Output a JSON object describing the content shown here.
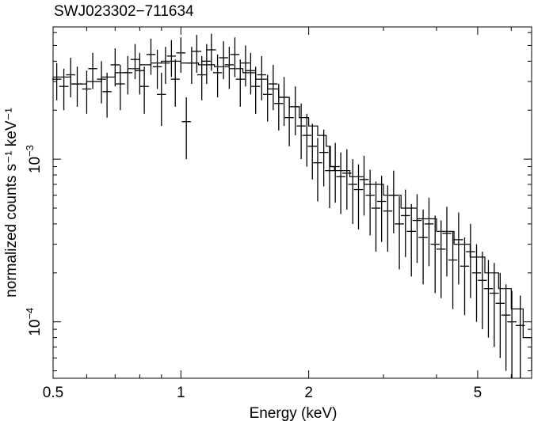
{
  "chart_data": {
    "type": "scatter",
    "title": "SWJ023302−711634",
    "xlabel": "Energy (keV)",
    "ylabel": "normalized counts s⁻¹ keV⁻¹",
    "x_scale": "log",
    "y_scale": "log",
    "xlim": [
      0.5,
      6.7
    ],
    "ylim": [
      4.5e-05,
      0.0065
    ],
    "x_ticks": [
      {
        "value": 0.5,
        "label": "0.5"
      },
      {
        "value": 1,
        "label": "1"
      },
      {
        "value": 2,
        "label": "2"
      },
      {
        "value": 5,
        "label": "5"
      }
    ],
    "y_ticks": [
      {
        "value": 0.0001,
        "base": "10",
        "exp": "−4"
      },
      {
        "value": 0.001,
        "base": "10",
        "exp": "−3"
      }
    ],
    "series": [
      {
        "type": "data",
        "x": [
          0.51,
          0.53,
          0.55,
          0.57,
          0.6,
          0.62,
          0.65,
          0.67,
          0.7,
          0.72,
          0.75,
          0.78,
          0.8,
          0.82,
          0.85,
          0.88,
          0.9,
          0.92,
          0.95,
          0.97,
          1.0,
          1.03,
          1.06,
          1.09,
          1.12,
          1.15,
          1.18,
          1.22,
          1.26,
          1.3,
          1.34,
          1.38,
          1.42,
          1.46,
          1.5,
          1.55,
          1.6,
          1.65,
          1.7,
          1.75,
          1.8,
          1.86,
          1.92,
          1.98,
          2.04,
          2.1,
          2.17,
          2.24,
          2.31,
          2.38,
          2.46,
          2.54,
          2.62,
          2.7,
          2.79,
          2.88,
          2.97,
          3.07,
          3.17,
          3.27,
          3.38,
          3.49,
          3.6,
          3.72,
          3.84,
          3.97,
          4.1,
          4.23,
          4.37,
          4.51,
          4.66,
          4.81,
          4.97,
          5.13,
          5.3,
          5.47,
          5.65,
          5.83,
          6.02,
          6.3
        ],
        "y": [
          0.0031,
          0.0028,
          0.0033,
          0.0029,
          0.0027,
          0.0036,
          0.0031,
          0.0026,
          0.0038,
          0.0029,
          0.0034,
          0.0041,
          0.0035,
          0.0028,
          0.0044,
          0.0037,
          0.0025,
          0.0039,
          0.0043,
          0.0031,
          0.0045,
          0.0017,
          0.0039,
          0.0046,
          0.0033,
          0.004,
          0.0047,
          0.0034,
          0.0042,
          0.0038,
          0.0044,
          0.0031,
          0.0039,
          0.0035,
          0.0028,
          0.0033,
          0.0025,
          0.0029,
          0.0022,
          0.0024,
          0.0018,
          0.0021,
          0.0016,
          0.0014,
          0.0012,
          0.00095,
          0.0011,
          0.00085,
          0.0009,
          0.00078,
          0.00082,
          0.0007,
          0.00065,
          0.00075,
          0.0006,
          0.0005,
          0.00055,
          0.00048,
          0.0006,
          0.0004,
          0.00045,
          0.00036,
          0.00042,
          0.00033,
          0.0004,
          0.0003,
          0.00028,
          0.00035,
          0.00024,
          0.00032,
          0.00022,
          0.00027,
          0.0002,
          0.00018,
          0.00016,
          0.00015,
          0.00013,
          0.00011,
          0.0001,
          9.5e-05
        ],
        "yerr": [
          0.0008,
          0.0008,
          0.0009,
          0.0008,
          0.0008,
          0.0009,
          0.0009,
          0.0008,
          0.001,
          0.0009,
          0.0009,
          0.001,
          0.001,
          0.0009,
          0.0011,
          0.001,
          0.0009,
          0.001,
          0.0011,
          0.001,
          0.0011,
          0.0007,
          0.001,
          0.0012,
          0.001,
          0.0011,
          0.0012,
          0.001,
          0.0011,
          0.0011,
          0.0012,
          0.001,
          0.0011,
          0.001,
          0.0009,
          0.001,
          0.0008,
          0.0009,
          0.0007,
          0.0008,
          0.0006,
          0.0007,
          0.0006,
          0.0005,
          0.00045,
          0.0004,
          0.00042,
          0.00035,
          0.00036,
          0.00032,
          0.00033,
          0.0003,
          0.00028,
          0.0003,
          0.00026,
          0.00023,
          0.00024,
          0.00021,
          0.00025,
          0.00019,
          0.0002,
          0.00017,
          0.00019,
          0.00016,
          0.00018,
          0.00015,
          0.00014,
          0.00016,
          0.00012,
          0.00015,
          0.00011,
          0.00013,
          0.0001,
          9e-05,
          8e-05,
          8e-05,
          7e-05,
          6e-05,
          5.5e-05,
          5e-05
        ]
      },
      {
        "type": "model",
        "x": [
          0.5,
          0.55,
          0.6,
          0.65,
          0.7,
          0.75,
          0.8,
          0.85,
          0.9,
          0.95,
          1.0,
          1.1,
          1.2,
          1.3,
          1.4,
          1.5,
          1.6,
          1.7,
          1.8,
          1.9,
          2.0,
          2.1,
          2.2,
          2.25,
          2.3,
          2.5,
          2.7,
          3.0,
          3.3,
          3.6,
          4.0,
          4.4,
          4.8,
          5.2,
          5.6,
          6.0,
          6.4,
          6.7
        ],
        "y": [
          0.0032,
          0.0029,
          0.003,
          0.0032,
          0.0034,
          0.0036,
          0.0038,
          0.0039,
          0.004,
          0.004,
          0.0039,
          0.0038,
          0.0037,
          0.0036,
          0.0034,
          0.0031,
          0.0027,
          0.0024,
          0.0021,
          0.0018,
          0.0016,
          0.0014,
          0.0012,
          0.0009,
          0.00085,
          0.00078,
          0.0007,
          0.0006,
          0.0005,
          0.00043,
          0.00036,
          0.0003,
          0.00025,
          0.0002,
          0.00016,
          0.00012,
          8e-05,
          5e-05
        ]
      }
    ]
  }
}
